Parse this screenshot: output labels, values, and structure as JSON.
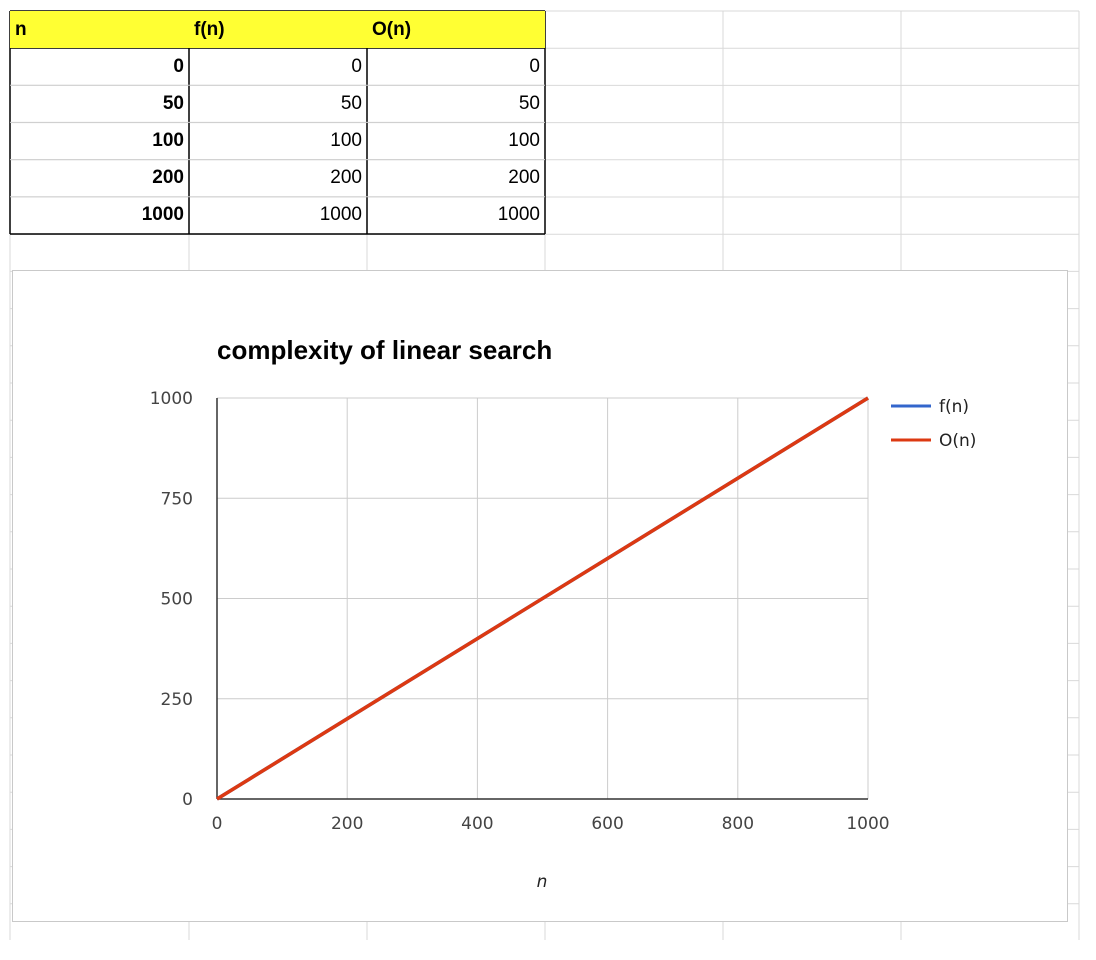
{
  "table": {
    "headers": [
      "n",
      "f(n)",
      "O(n)"
    ],
    "rows": [
      [
        "0",
        "0",
        "0"
      ],
      [
        "50",
        "50",
        "50"
      ],
      [
        "100",
        "100",
        "100"
      ],
      [
        "200",
        "200",
        "200"
      ],
      [
        "1000",
        "1000",
        "1000"
      ]
    ],
    "header_fill": "#ffff33"
  },
  "chart_data": {
    "type": "line",
    "title": "complexity of linear search",
    "xlabel": "n",
    "ylabel": "",
    "x": [
      0,
      50,
      100,
      200,
      1000
    ],
    "series": [
      {
        "name": "f(n)",
        "values": [
          0,
          50,
          100,
          200,
          1000
        ],
        "color": "#3366cc"
      },
      {
        "name": "O(n)",
        "values": [
          0,
          50,
          100,
          200,
          1000
        ],
        "color": "#dc3912"
      }
    ],
    "xlim": [
      0,
      1000
    ],
    "ylim": [
      0,
      1000
    ],
    "x_ticks": [
      "0",
      "200",
      "400",
      "600",
      "800",
      "1000"
    ],
    "y_ticks": [
      "0",
      "250",
      "500",
      "750",
      "1000"
    ],
    "grid": true,
    "legend": "right"
  }
}
